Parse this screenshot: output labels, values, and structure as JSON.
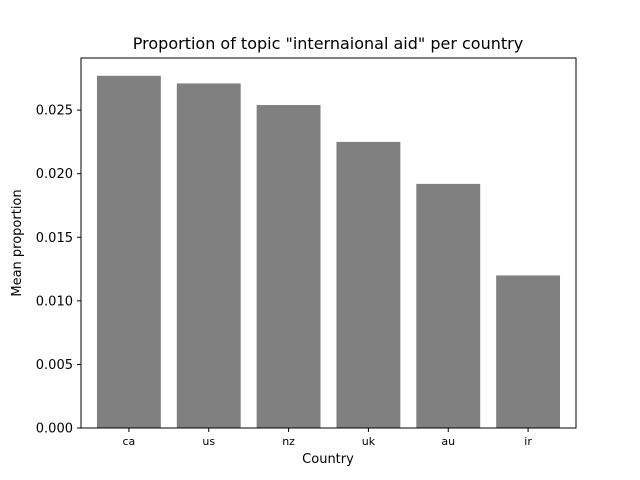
{
  "chart_data": {
    "type": "bar",
    "title": "Proportion of topic \"internaional aid\" per country",
    "xlabel": "Country",
    "ylabel": "Mean proportion",
    "categories": [
      "ca",
      "us",
      "nz",
      "uk",
      "au",
      "ir"
    ],
    "values": [
      0.0277,
      0.0271,
      0.0254,
      0.0225,
      0.0192,
      0.012
    ],
    "ylim": [
      0,
      0.0291
    ],
    "yticks": [
      0.0,
      0.005,
      0.01,
      0.015,
      0.02,
      0.025
    ],
    "ytick_labels": [
      "0.000",
      "0.005",
      "0.010",
      "0.015",
      "0.020",
      "0.025"
    ],
    "grid": false,
    "legend": "none",
    "bar_color": "#808080"
  }
}
